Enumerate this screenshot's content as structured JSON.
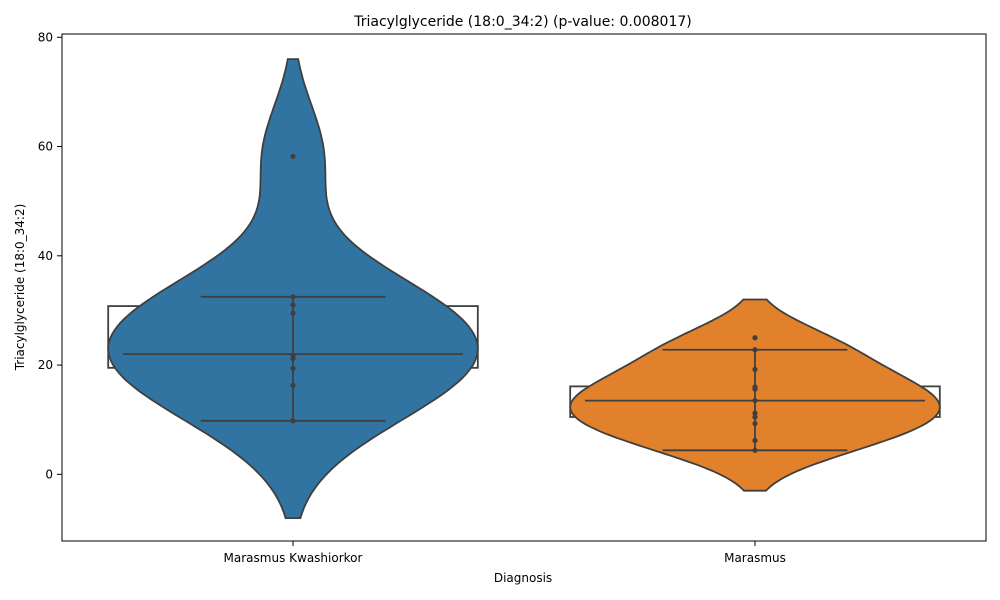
{
  "chart_data": {
    "type": "violin",
    "title": "Triacylglyceride (18:0_34:2) (p-value: 0.008017)",
    "xlabel": "Diagnosis",
    "ylabel": "Triacylglyceride (18:0_34:2)",
    "ylim": [
      -12.2,
      80.6
    ],
    "yticks": [
      0,
      20,
      40,
      60,
      80
    ],
    "grid": false,
    "categories": [
      "Marasmus Kwashiorkor",
      "Marasmus"
    ],
    "series": [
      {
        "category": "Marasmus Kwashiorkor",
        "color": "#3274a1",
        "box": {
          "q1": 19.5,
          "median": 22,
          "q3": 30.8
        },
        "whiskers": [
          9.8,
          32.5
        ],
        "violin_range": [
          -8,
          76
        ],
        "points": [
          58.2,
          32.5,
          31.0,
          29.5,
          21.8,
          21.2,
          19.4,
          16.3,
          9.8
        ]
      },
      {
        "category": "Marasmus",
        "color": "#e1812c",
        "box": {
          "q1": 10.5,
          "median": 13.5,
          "q3": 16.1
        },
        "whiskers": [
          4.4,
          22.8
        ],
        "violin_range": [
          -3,
          32
        ],
        "points": [
          25.0,
          22.8,
          19.2,
          16.0,
          15.6,
          13.5,
          11.2,
          10.5,
          9.3,
          6.2,
          4.4
        ]
      }
    ]
  }
}
